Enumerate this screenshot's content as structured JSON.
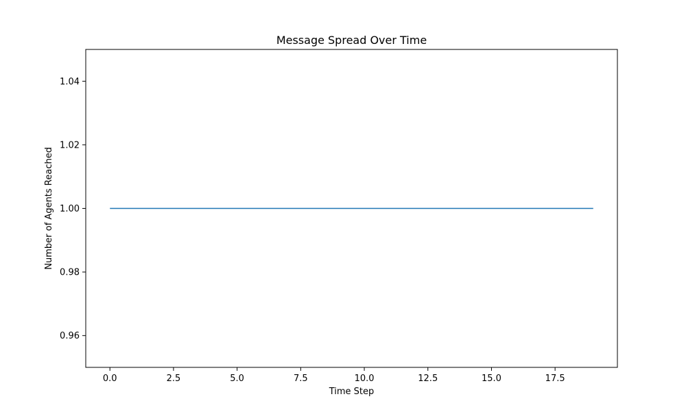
{
  "chart_data": {
    "type": "line",
    "title": "Message Spread Over Time",
    "xlabel": "Time Step",
    "ylabel": "Number of Agents Reached",
    "xlim": [
      -0.95,
      19.95
    ],
    "ylim": [
      0.95,
      1.05
    ],
    "xticks": [
      0.0,
      2.5,
      5.0,
      7.5,
      10.0,
      12.5,
      15.0,
      17.5
    ],
    "xtick_labels": [
      "0.0",
      "2.5",
      "5.0",
      "7.5",
      "10.0",
      "12.5",
      "15.0",
      "17.5"
    ],
    "yticks": [
      0.96,
      0.98,
      1.0,
      1.02,
      1.04
    ],
    "ytick_labels": [
      "0.96",
      "0.98",
      "1.00",
      "1.02",
      "1.04"
    ],
    "grid": false,
    "series": [
      {
        "color": "#1f77b4",
        "x": [
          0,
          1,
          2,
          3,
          4,
          5,
          6,
          7,
          8,
          9,
          10,
          11,
          12,
          13,
          14,
          15,
          16,
          17,
          18,
          19
        ],
        "values": [
          1,
          1,
          1,
          1,
          1,
          1,
          1,
          1,
          1,
          1,
          1,
          1,
          1,
          1,
          1,
          1,
          1,
          1,
          1,
          1
        ]
      }
    ]
  }
}
